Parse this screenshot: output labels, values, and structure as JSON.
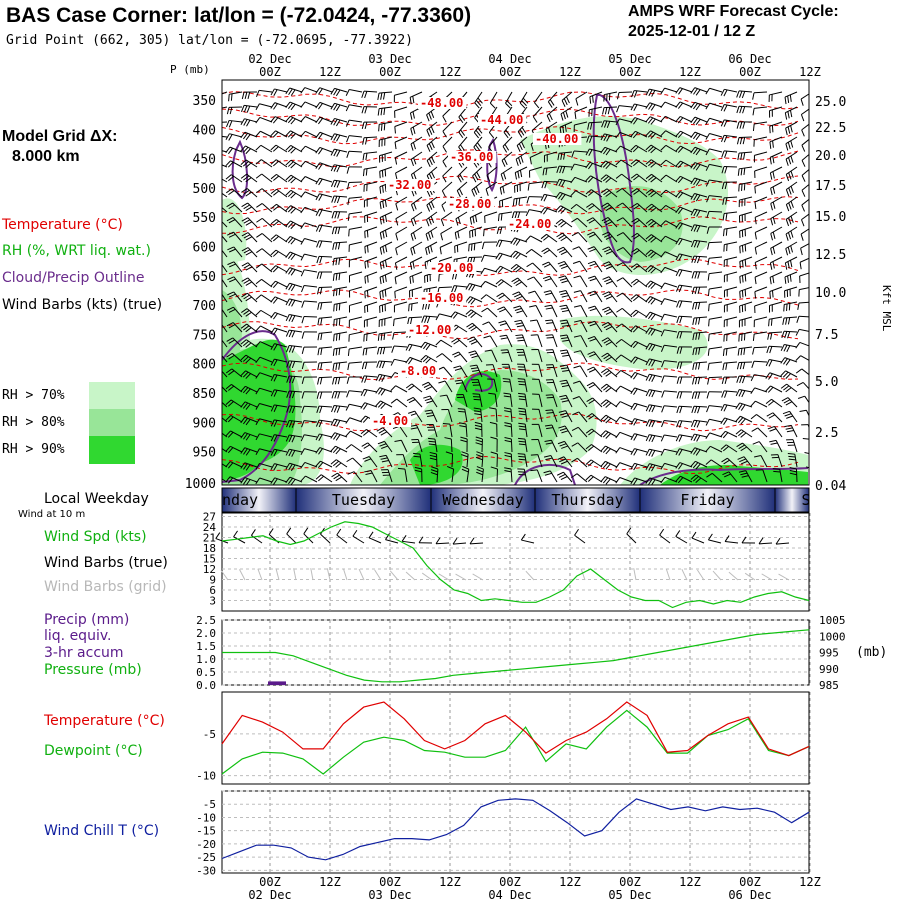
{
  "header": {
    "title": "BAS Case Corner:  lat/lon = (-72.0424, -77.3360)",
    "grid_point": "Grid Point (662, 305) lat/lon = (-72.0695, -77.3922)",
    "cycle_label": "AMPS WRF Forecast Cycle:",
    "cycle_value": "2025-12-01 / 12  Z"
  },
  "left_panel": {
    "grid_dx_label": "Model Grid ΔX:",
    "grid_dx_value": "8.000 km",
    "temperature": "Temperature (°C)",
    "rh": "RH (%, WRT liq. wat.)",
    "cloud": "Cloud/Precip Outline",
    "barbs": "Wind Barbs (kts) (true)",
    "rh70": "RH > 70%",
    "rh80": "RH > 80%",
    "rh90": "RH > 90%",
    "local_weekday": "Local Weekday",
    "wind_10m": "Wind at 10 m",
    "wind_spd": "Wind Spd (kts)",
    "wind_barbs_true": "Wind Barbs (true)",
    "wind_barbs_grid": "Wind Barbs (grid)",
    "precip": "Precip (mm)",
    "liq": "liq. equiv.",
    "accum": "3-hr accum",
    "pressure": "Pressure (mb)",
    "temp2": "Temperature (°C)",
    "dewpoint": "Dewpoint (°C)",
    "windchill": "Wind Chill T (°C)"
  },
  "colors": {
    "temp": "#e00000",
    "dew": "#10c010",
    "rh70": "#c8f5c8",
    "rh80": "#98e598",
    "rh90": "#30d830",
    "cloud": "#6a2c8c",
    "windchill": "#1020a0",
    "precip": "#5a1a8a"
  },
  "chart_data": [
    {
      "type": "contour",
      "name": "cross-section",
      "x": [
        "00Z 02 Dec",
        "12Z",
        "00Z 03 Dec",
        "12Z",
        "00Z 04 Dec",
        "12Z",
        "00Z 05 Dec",
        "12Z",
        "00Z 06 Dec",
        "12Z"
      ],
      "top_dates": [
        "02 Dec",
        "03 Dec",
        "04 Dec",
        "05 Dec",
        "06 Dec"
      ],
      "hour_labels": [
        "00Z",
        "12Z",
        "00Z",
        "12Z",
        "00Z",
        "12Z",
        "00Z",
        "12Z",
        "00Z",
        "12Z"
      ],
      "ylabel_left": "P (mb)",
      "ylabel_right": "Kft MSL",
      "pressure_ticks": [
        350,
        400,
        450,
        500,
        550,
        600,
        650,
        700,
        750,
        800,
        850,
        900,
        950,
        1000
      ],
      "height_ticks": [
        "25.0",
        "22.5",
        "20.0",
        "17.5",
        "15.0",
        "12.5",
        "10.0",
        "7.5",
        "5.0",
        "2.5",
        "0.04"
      ],
      "isotherm_labels": [
        "-48.00",
        "-44.00",
        "-40.00",
        "-36.00",
        "-32.00",
        "-28.00",
        "-24.00",
        "-20.00",
        "-16.00",
        "-12.00",
        "-8.00",
        "-4.00"
      ]
    },
    {
      "type": "band",
      "name": "weekday",
      "labels": [
        "nday",
        "Tuesday",
        "Wednesday",
        "Thursday",
        "Friday",
        "S"
      ]
    },
    {
      "type": "line",
      "name": "wind-speed",
      "yticks": [
        3,
        6,
        9,
        12,
        15,
        18,
        21,
        24,
        27
      ],
      "ylim": [
        0,
        27
      ],
      "series": [
        {
          "name": "Wind Spd (kts)",
          "values": [
            20,
            20.5,
            21,
            21.5,
            20,
            19,
            20,
            22,
            24,
            25.5,
            25,
            24,
            22,
            20,
            18,
            13,
            9,
            6,
            5,
            3,
            3.5,
            3,
            2.5,
            2.5,
            4,
            6,
            10,
            12,
            9,
            6,
            4,
            3,
            3,
            1,
            2.5,
            3,
            2,
            3,
            2.5,
            4,
            5,
            5.5,
            4,
            3
          ]
        }
      ]
    },
    {
      "type": "line",
      "name": "precip-pressure",
      "yticks_left": [
        "0.0",
        "0.5",
        "1.0",
        "1.5",
        "2.0",
        "2.5"
      ],
      "yticks_right": [
        "985",
        "990",
        "995",
        "1000",
        "1005"
      ],
      "ylabel_right": "(mb)",
      "series": [
        {
          "name": "Pressure (mb)",
          "values": [
            995,
            995,
            995,
            995,
            994,
            992,
            990,
            988,
            986.5,
            986,
            986,
            986.5,
            987,
            988,
            988.5,
            989,
            989.5,
            990,
            990.5,
            991,
            991.5,
            992,
            992.5,
            993.5,
            994.5,
            995.5,
            996.5,
            997.5,
            998.5,
            999.5,
            1000.5,
            1001,
            1001.5,
            1002
          ]
        }
      ],
      "precip": [
        {
          "x": 2,
          "value": 0.1
        }
      ]
    },
    {
      "type": "line",
      "name": "temp-dew",
      "yticks": [
        -5,
        -10
      ],
      "series": [
        {
          "name": "Temperature (°C)",
          "values": [
            -6.2,
            -2.8,
            -3.6,
            -4.8,
            -6.8,
            -6.8,
            -3.8,
            -1.8,
            -1.2,
            -3.2,
            -5.8,
            -6.8,
            -5.8,
            -3.8,
            -2.8,
            -4.8,
            -7.3,
            -5.8,
            -4.8,
            -3.2,
            -1.2,
            -2.8,
            -7.2,
            -7.0,
            -5.2,
            -3.8,
            -3.0,
            -6.8,
            -7.6,
            -6.5
          ]
        },
        {
          "name": "Dewpoint (°C)",
          "values": [
            -9.8,
            -8.0,
            -7.2,
            -7.3,
            -8.0,
            -9.8,
            -7.8,
            -6.0,
            -5.4,
            -5.8,
            -7.0,
            -7.2,
            -7.8,
            -7.8,
            -7.0,
            -4.2,
            -8.3,
            -6.2,
            -6.8,
            -4.2,
            -2.2,
            -4.2,
            -7.3,
            -7.3,
            -5.2,
            -4.5,
            -3.2,
            -7.0,
            -7.6,
            -6.5
          ]
        }
      ]
    },
    {
      "type": "line",
      "name": "wind-chill",
      "yticks": [
        -5,
        -10,
        -15,
        -20,
        -25,
        -30
      ],
      "series": [
        {
          "name": "Wind Chill T (°C)",
          "values": [
            -25.5,
            -23,
            -20.5,
            -20.5,
            -21.5,
            -25,
            -26,
            -24,
            -21,
            -19.5,
            -18,
            -18,
            -18.5,
            -16.5,
            -13,
            -6,
            -3.5,
            -3,
            -3.5,
            -7.5,
            -12,
            -17,
            -15,
            -8,
            -3,
            -5,
            -7,
            -6,
            -7.5,
            -6,
            -7,
            -6.5,
            -8,
            -12,
            -8
          ]
        }
      ]
    }
  ]
}
